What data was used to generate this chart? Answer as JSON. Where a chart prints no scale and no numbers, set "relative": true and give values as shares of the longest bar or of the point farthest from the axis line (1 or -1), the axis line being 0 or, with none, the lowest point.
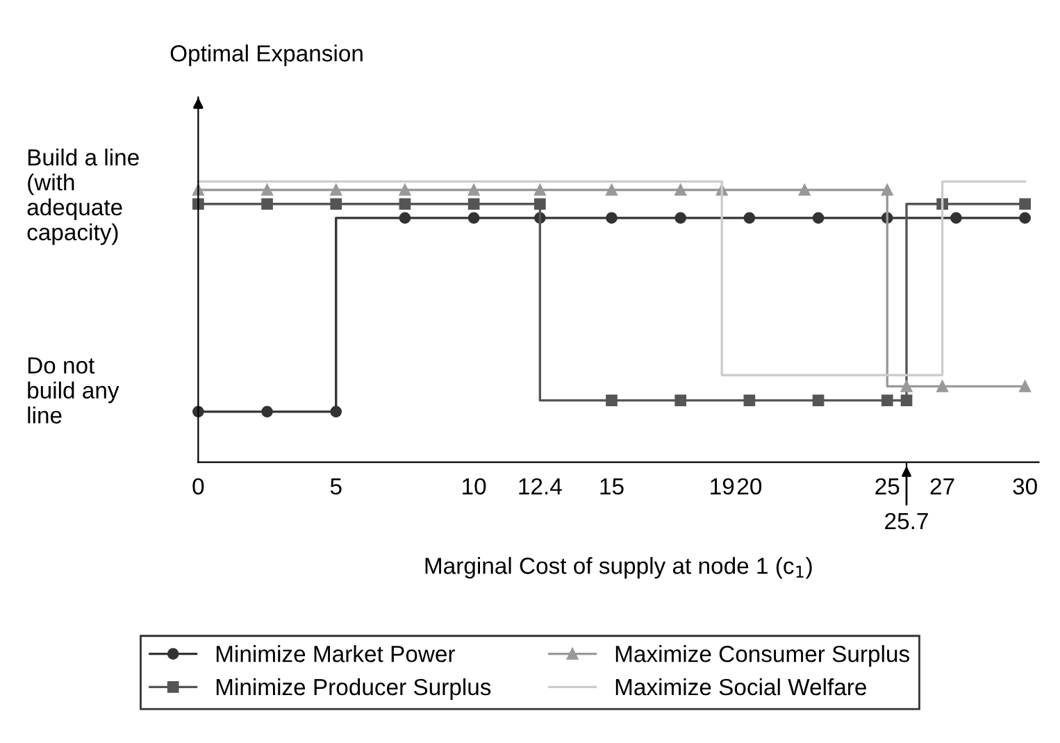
{
  "chart_data": {
    "type": "step",
    "relative": true,
    "xlabel": "Marginal Cost of supply at node 1 (c$_{1}$)",
    "ylabel": "Optimal Expansion",
    "xlim": [
      0,
      30.5
    ],
    "xticks": [
      0,
      5,
      10,
      12.4,
      15,
      19,
      20,
      25,
      {
        "value": 25.7,
        "label": null
      },
      27,
      30
    ],
    "annotations": [
      "Build a line\n(with\nadequate\ncapacity)",
      "Do not\nbuild any\nline",
      "25.7"
    ],
    "legend": "bottom",
    "series": [
      {
        "name": "Minimize Market Power",
        "color": "#333333",
        "marker": "circle",
        "x": [
          0,
          2.5,
          5,
          7.5,
          10,
          12.4,
          15,
          17.5,
          20,
          22.5,
          25,
          27.5,
          30
        ],
        "values": [
          0.18,
          0.18,
          0.18,
          0.87,
          0.87,
          0.87,
          0.87,
          0.87,
          0.87,
          0.87,
          0.87,
          0.87,
          0.87
        ]
      },
      {
        "name": "Minimize Producer Surplus",
        "color": "#555555",
        "marker": "square",
        "x": [
          0,
          2.5,
          5,
          7.5,
          10,
          12.4,
          15,
          17.5,
          20,
          22.5,
          25,
          25.7,
          27,
          30
        ],
        "values": [
          0.92,
          0.92,
          0.92,
          0.92,
          0.92,
          0.92,
          0.22,
          0.22,
          0.22,
          0.22,
          0.22,
          0.22,
          0.92,
          0.92
        ]
      },
      {
        "name": "Maximize Consumer Surplus",
        "color": "#999999",
        "marker": "triangle",
        "x": [
          0,
          2.5,
          5,
          7.5,
          10,
          12.4,
          15,
          17.5,
          19,
          22,
          25,
          25.7,
          27,
          30
        ],
        "values": [
          0.97,
          0.97,
          0.97,
          0.97,
          0.97,
          0.97,
          0.97,
          0.97,
          0.97,
          0.97,
          0.97,
          0.27,
          0.27,
          0.27
        ]
      },
      {
        "name": "Maximize Social Welfare",
        "color": "#cccccc",
        "marker": "none",
        "x": [
          0,
          19,
          27,
          30
        ],
        "values": [
          1.0,
          1.0,
          0.31,
          1.0
        ]
      }
    ]
  }
}
